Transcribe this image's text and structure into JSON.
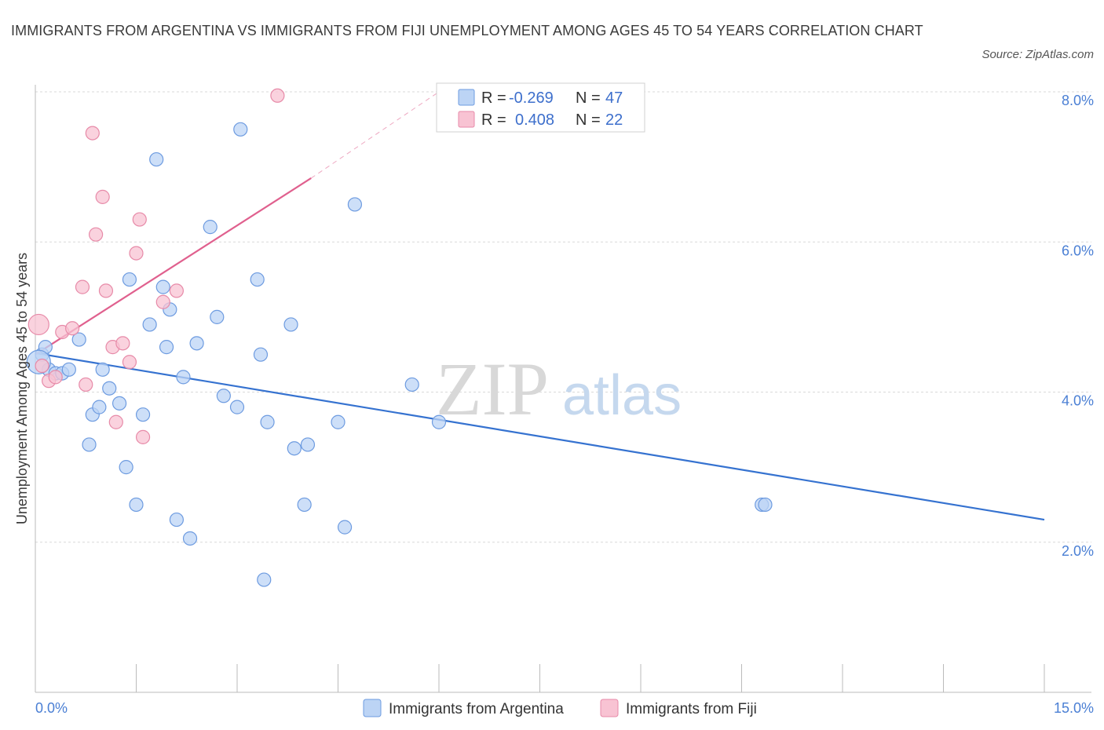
{
  "title": "IMMIGRANTS FROM ARGENTINA VS IMMIGRANTS FROM FIJI UNEMPLOYMENT AMONG AGES 45 TO 54 YEARS CORRELATION CHART",
  "source": "Source: ZipAtlas.com",
  "watermark": {
    "zip": "ZIP",
    "atlas": "atlas"
  },
  "colors": {
    "argentina_fill": "#bcd4f5",
    "argentina_stroke": "#6d9be0",
    "argentina_line": "#3572d0",
    "fiji_fill": "#f8c3d3",
    "fiji_stroke": "#e78aa8",
    "fiji_line": "#e0608e",
    "grid": "#d9d9d9",
    "tick_label": "#4a7fd4"
  },
  "legend": {
    "r_label": "R =",
    "n_label": "N =",
    "rows": [
      {
        "series": "argentina",
        "r": "-0.269",
        "n": "47"
      },
      {
        "series": "fiji",
        "r": "0.408",
        "n": "22"
      }
    ]
  },
  "chart_data": {
    "type": "scatter",
    "title": "IMMIGRANTS FROM ARGENTINA VS IMMIGRANTS FROM FIJI UNEMPLOYMENT AMONG AGES 45 TO 54 YEARS CORRELATION CHART",
    "xlabel": "",
    "ylabel": "Unemployment Among Ages 45 to 54 years",
    "xlim": [
      0,
      15
    ],
    "ylim": [
      0,
      8
    ],
    "x_tick_labels": [
      "0.0%",
      "15.0%"
    ],
    "y_ticks": [
      2,
      4,
      6,
      8
    ],
    "y_tick_labels": [
      "2.0%",
      "4.0%",
      "6.0%",
      "8.0%"
    ],
    "grid": true,
    "legend_position": "top-center",
    "series": [
      {
        "name": "Immigrants from Argentina",
        "key": "argentina",
        "r": -0.269,
        "n": 47,
        "trend": {
          "x0": 0,
          "y0": 4.52,
          "x1": 15,
          "y1": 2.3
        },
        "points": [
          [
            0.1,
            4.5
          ],
          [
            0.15,
            4.6
          ],
          [
            0.2,
            4.3
          ],
          [
            0.3,
            4.25
          ],
          [
            0.4,
            4.25
          ],
          [
            0.5,
            4.3
          ],
          [
            0.65,
            4.7
          ],
          [
            0.8,
            3.3
          ],
          [
            0.85,
            3.7
          ],
          [
            0.95,
            3.8
          ],
          [
            1.0,
            4.3
          ],
          [
            1.1,
            4.05
          ],
          [
            1.25,
            3.85
          ],
          [
            1.35,
            3.0
          ],
          [
            1.4,
            5.5
          ],
          [
            1.5,
            2.5
          ],
          [
            1.6,
            3.7
          ],
          [
            1.7,
            4.9
          ],
          [
            1.8,
            7.1
          ],
          [
            1.9,
            5.4
          ],
          [
            1.95,
            4.6
          ],
          [
            2.0,
            5.1
          ],
          [
            2.1,
            2.3
          ],
          [
            2.2,
            4.2
          ],
          [
            2.3,
            2.05
          ],
          [
            2.4,
            4.65
          ],
          [
            2.6,
            6.2
          ],
          [
            2.7,
            5.0
          ],
          [
            2.8,
            3.95
          ],
          [
            3.0,
            3.8
          ],
          [
            3.05,
            7.5
          ],
          [
            3.3,
            5.5
          ],
          [
            3.35,
            4.5
          ],
          [
            3.4,
            1.5
          ],
          [
            3.45,
            3.6
          ],
          [
            3.8,
            4.9
          ],
          [
            3.85,
            3.25
          ],
          [
            4.0,
            2.5
          ],
          [
            4.05,
            3.3
          ],
          [
            4.5,
            3.6
          ],
          [
            4.6,
            2.2
          ],
          [
            4.75,
            6.5
          ],
          [
            5.6,
            4.1
          ],
          [
            6.0,
            3.6
          ],
          [
            10.8,
            2.5
          ],
          [
            10.85,
            2.5
          ],
          [
            0.05,
            4.4
          ]
        ]
      },
      {
        "name": "Immigrants from Fiji",
        "key": "fiji",
        "r": 0.408,
        "n": 22,
        "trend": {
          "x0": 0,
          "y0": 4.5,
          "x1": 4.1,
          "y1": 6.85,
          "dash_to_x": 6,
          "dash_to_y": 8.0
        },
        "points": [
          [
            0.05,
            4.9
          ],
          [
            0.1,
            4.35
          ],
          [
            0.2,
            4.15
          ],
          [
            0.3,
            4.2
          ],
          [
            0.4,
            4.8
          ],
          [
            0.55,
            4.85
          ],
          [
            0.7,
            5.4
          ],
          [
            0.75,
            4.1
          ],
          [
            0.85,
            7.45
          ],
          [
            0.9,
            6.1
          ],
          [
            1.0,
            6.6
          ],
          [
            1.05,
            5.35
          ],
          [
            1.15,
            4.6
          ],
          [
            1.2,
            3.6
          ],
          [
            1.3,
            4.65
          ],
          [
            1.4,
            4.4
          ],
          [
            1.5,
            5.85
          ],
          [
            1.55,
            6.3
          ],
          [
            1.6,
            3.4
          ],
          [
            1.9,
            5.2
          ],
          [
            2.1,
            5.35
          ],
          [
            3.6,
            7.95
          ]
        ]
      }
    ]
  }
}
